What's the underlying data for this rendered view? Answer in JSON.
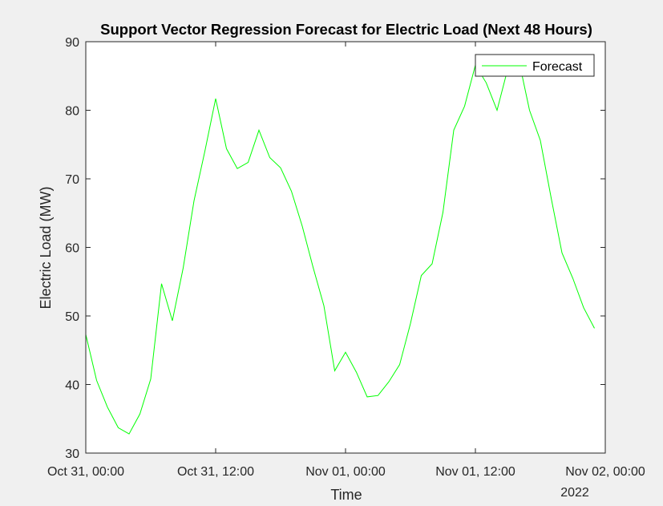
{
  "figure": {
    "background_color": "#f0f0f0",
    "axes_color": "#ffffff",
    "line_color": "#00ff00"
  },
  "chart_data": {
    "type": "line",
    "title": "Support Vector Regression Forecast for Electric Load (Next 48 Hours)",
    "xlabel": "Time",
    "ylabel": "Electric Load (MW)",
    "ylim": [
      30,
      90
    ],
    "yticks": [
      30,
      40,
      50,
      60,
      70,
      80,
      90
    ],
    "xlim_hours": [
      0,
      48
    ],
    "xticks": [
      {
        "hour": 0,
        "label": "Oct 31, 00:00"
      },
      {
        "hour": 12,
        "label": "Oct 31, 12:00"
      },
      {
        "hour": 24,
        "label": "Nov 01, 00:00"
      },
      {
        "hour": 36,
        "label": "Nov 01, 12:00"
      },
      {
        "hour": 48,
        "label": "Nov 02, 00:00"
      }
    ],
    "x_secondary_label": "2022",
    "legend": {
      "position": "top-right",
      "entries": [
        "Forecast"
      ]
    },
    "grid": false,
    "series": [
      {
        "name": "Forecast",
        "color": "#00ff00",
        "x": [
          0,
          1,
          2,
          3,
          4,
          5,
          6,
          7,
          8,
          9,
          10,
          11,
          12,
          13,
          14,
          15,
          16,
          17,
          18,
          19,
          20,
          21,
          22,
          23,
          24,
          25,
          26,
          27,
          28,
          29,
          30,
          31,
          32,
          33,
          34,
          35,
          36,
          37,
          38,
          39,
          40,
          41,
          42,
          43,
          44,
          45,
          46,
          47
        ],
        "values": [
          47.3,
          40.6,
          36.7,
          33.7,
          32.8,
          35.7,
          40.8,
          54.7,
          49.3,
          57,
          66.8,
          74,
          81.7,
          74.4,
          71.5,
          72.4,
          77.1,
          73.1,
          71.6,
          68.2,
          63.1,
          57.1,
          51.5,
          42,
          44.7,
          41.8,
          38.2,
          38.4,
          40.4,
          42.9,
          48.9,
          55.9,
          57.6,
          65.1,
          77.1,
          80.6,
          86.6,
          84,
          80,
          86.1,
          87.4,
          80,
          75.6,
          67.2,
          59.2,
          55.5,
          51.2,
          48.2
        ]
      }
    ]
  }
}
